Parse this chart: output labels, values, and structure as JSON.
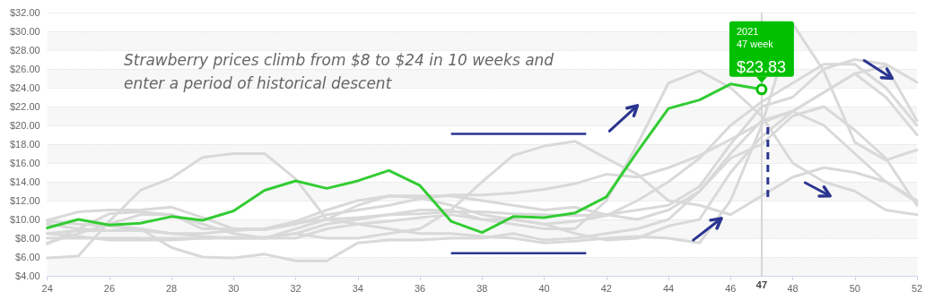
{
  "chart_data": {
    "type": "line",
    "x": [
      24,
      25,
      26,
      27,
      28,
      29,
      30,
      31,
      32,
      33,
      34,
      35,
      36,
      37,
      38,
      39,
      40,
      41,
      42,
      43,
      44,
      45,
      46,
      47,
      48,
      49,
      50,
      51,
      52
    ],
    "series": [
      {
        "color": "#d9d9d9",
        "values": [
          9.9,
          10.8,
          11.0,
          11.0,
          11.3,
          10.2,
          9.0,
          8.9,
          9.5,
          10.5,
          11.0,
          11.5,
          12.2,
          12.6,
          12.6,
          12.8,
          13.2,
          13.8,
          14.8,
          14.5,
          15.5,
          16.8,
          18.5,
          20.3,
          21.5,
          23.5,
          25.5,
          23.0,
          19.0
        ]
      },
      {
        "color": "#d9d9d9",
        "values": [
          8.0,
          8.0,
          8.0,
          8.0,
          8.0,
          8.0,
          8.0,
          8.0,
          9.0,
          10.0,
          10.2,
          10.5,
          10.6,
          10.8,
          10.8,
          10.6,
          10.5,
          10.4,
          10.5,
          11.0,
          11.5,
          13.5,
          18.0,
          22.0,
          23.0,
          26.0,
          27.0,
          26.5,
          24.6
        ]
      },
      {
        "color": "#d9d9d9",
        "values": [
          9.5,
          9.0,
          8.8,
          8.8,
          8.5,
          8.2,
          8.0,
          8.0,
          8.5,
          9.5,
          10.0,
          10.5,
          11.0,
          11.0,
          10.0,
          9.5,
          9.0,
          9.0,
          12.0,
          18.0,
          24.5,
          25.8,
          24.0,
          21.0,
          16.0,
          14.0,
          13.0,
          11.0,
          10.5
        ]
      },
      {
        "color": "#d9d9d9",
        "values": [
          7.5,
          8.5,
          9.5,
          10.5,
          10.5,
          9.5,
          8.5,
          8.0,
          8.0,
          9.0,
          9.5,
          9.0,
          8.5,
          8.5,
          8.2,
          8.0,
          7.5,
          7.7,
          8.0,
          8.2,
          8.0,
          7.5,
          12.0,
          20.0,
          30.8,
          25.8,
          18.2,
          16.3,
          17.4
        ]
      },
      {
        "color": "#d9d9d9",
        "values": [
          8.5,
          8.8,
          8.8,
          9.0,
          8.5,
          8.5,
          8.8,
          9.0,
          9.8,
          11.0,
          12.0,
          12.5,
          12.5,
          12.5,
          12.0,
          11.5,
          11.0,
          11.3,
          10.5,
          10.0,
          11.0,
          13.0,
          17.0,
          20.5,
          21.5,
          20.0,
          17.0,
          14.0,
          12.0
        ]
      },
      {
        "color": "#d9d9d9",
        "values": [
          5.9,
          6.1,
          9.8,
          13.1,
          14.4,
          16.6,
          17.0,
          17.0,
          14.3,
          10.0,
          9.5,
          9.8,
          10.2,
          10.5,
          10.0,
          10.0,
          9.5,
          9.8,
          10.4,
          12.0,
          14.0,
          16.5,
          20.0,
          22.5,
          24.5,
          26.5,
          26.5,
          24.0,
          20.0
        ]
      },
      {
        "color": "#d9d9d9",
        "values": [
          8.5,
          8.2,
          7.8,
          7.8,
          7.8,
          8.0,
          8.1,
          8.1,
          8.5,
          8.0,
          8.0,
          8.5,
          9.0,
          11.0,
          14.0,
          16.8,
          17.8,
          18.3,
          16.5,
          14.8,
          12.0,
          11.5,
          10.5,
          12.5,
          14.5,
          15.5,
          15.0,
          14.0,
          11.8
        ]
      },
      {
        "color": "#d9d9d9",
        "values": [
          9.8,
          9.5,
          9.3,
          9.0,
          7.0,
          6.0,
          5.9,
          6.3,
          5.6,
          5.6,
          7.5,
          7.8,
          7.8,
          8.0,
          8.0,
          8.5,
          7.8,
          8.0,
          8.5,
          9.0,
          10.0,
          13.0,
          16.5,
          18.0,
          21.0,
          22.0,
          19.5,
          16.5,
          11.5
        ]
      },
      {
        "color": "#d9d9d9",
        "values": [
          7.4,
          9.0,
          10.6,
          10.8,
          10.5,
          9.0,
          9.0,
          9.0,
          9.6,
          10.0,
          11.5,
          12.5,
          12.3,
          11.5,
          10.5,
          10.0,
          9.5,
          8.5,
          7.8,
          8.0,
          9.3,
          10.0,
          15.0,
          18.8,
          21.5,
          23.5,
          25.5,
          26.3,
          20.5
        ]
      },
      {
        "color": "#33cc33",
        "values": [
          9.1,
          10.0,
          9.4,
          9.6,
          10.3,
          9.9,
          10.9,
          13.1,
          14.1,
          13.3,
          14.1,
          15.2,
          13.6,
          9.8,
          8.6,
          10.3,
          10.2,
          10.7,
          12.4,
          17.2,
          21.8,
          22.7,
          24.4,
          23.83,
          null,
          null,
          null,
          null,
          null
        ]
      }
    ],
    "xlim": [
      24,
      52
    ],
    "xticks": [
      24,
      26,
      28,
      30,
      32,
      34,
      36,
      38,
      40,
      42,
      44,
      46,
      48,
      50,
      52
    ],
    "ylim": [
      4,
      32
    ],
    "yticks": [
      {
        "value": 4,
        "label": "$4.00"
      },
      {
        "value": 6,
        "label": "$6.00"
      },
      {
        "value": 8,
        "label": "$8.00"
      },
      {
        "value": 10,
        "label": "$10.00"
      },
      {
        "value": 12,
        "label": "$12.00"
      },
      {
        "value": 14,
        "label": "$14.00"
      },
      {
        "value": 16,
        "label": "$16.00"
      },
      {
        "value": 18,
        "label": "$18.00"
      },
      {
        "value": 20,
        "label": "$20.00"
      },
      {
        "value": 22,
        "label": "$22.00"
      },
      {
        "value": 24,
        "label": "$24.00"
      },
      {
        "value": 26,
        "label": "$26.00"
      },
      {
        "value": 28,
        "label": "$28.00"
      },
      {
        "value": 30,
        "label": "$30.00"
      },
      {
        "value": 32,
        "label": "$32.00"
      }
    ],
    "ref_lines": [
      {
        "axis": "x",
        "value": 47,
        "label": "47",
        "color": "#d6d6d6"
      }
    ],
    "annotations": [
      "Strawberry prices climb from $8 to $24 in 10 weeks and enter a period of historical descent",
      {
        "text": "2021\n47 week\n$23.83",
        "x": 47,
        "y": 23.83
      }
    ],
    "grid": "y",
    "marker": "none",
    "line_style": "solid"
  }
}
